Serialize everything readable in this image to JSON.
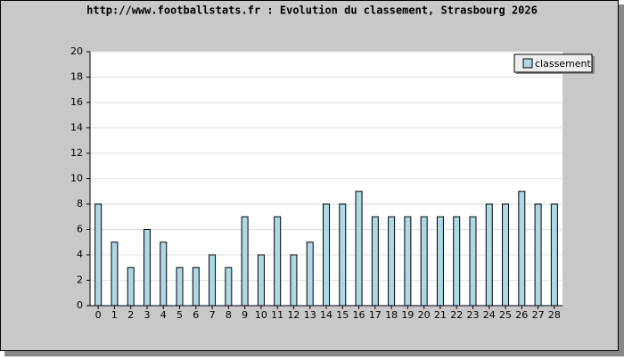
{
  "chart_data": {
    "type": "bar",
    "title": "http://www.footballstats.fr : Evolution du classement, Strasbourg 2026",
    "categories": [
      0,
      1,
      2,
      3,
      4,
      5,
      6,
      7,
      8,
      9,
      10,
      11,
      12,
      13,
      14,
      15,
      16,
      17,
      18,
      19,
      20,
      21,
      22,
      23,
      24,
      25,
      26,
      27,
      28
    ],
    "series": [
      {
        "name": "classement",
        "color": "#add8e6",
        "values": [
          8,
          5,
          3,
          6,
          5,
          3,
          3,
          4,
          3,
          7,
          4,
          7,
          4,
          5,
          8,
          8,
          9,
          7,
          7,
          7,
          7,
          7,
          7,
          7,
          8,
          8,
          9,
          8,
          8
        ]
      }
    ],
    "ylim": [
      0,
      20
    ],
    "yticks": [
      0,
      2,
      4,
      6,
      8,
      10,
      12,
      14,
      16,
      18,
      20
    ],
    "grid": true,
    "legend": "top-right"
  }
}
